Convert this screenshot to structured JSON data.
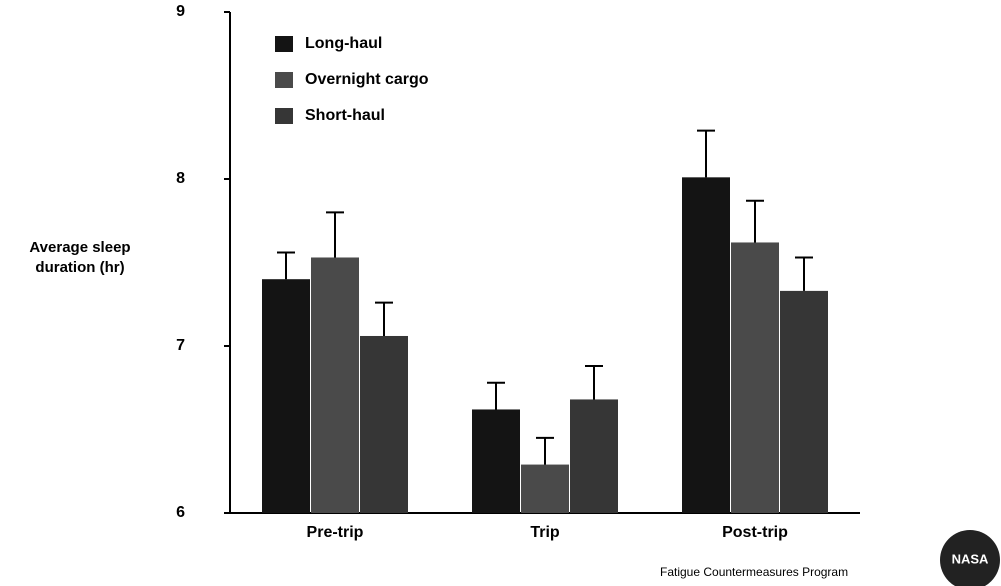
{
  "chart_data": {
    "type": "bar",
    "y_label": "Average sleep duration (hr)",
    "categories": [
      "Pre-trip",
      "Trip",
      "Post-trip"
    ],
    "series": [
      {
        "name": "Long-haul",
        "color": "#141414",
        "values": [
          7.4,
          6.62,
          8.01
        ],
        "errors": [
          0.16,
          0.16,
          0.28
        ]
      },
      {
        "name": "Overnight cargo",
        "color": "#4a4a4a",
        "values": [
          7.53,
          6.29,
          7.62
        ],
        "errors": [
          0.27,
          0.16,
          0.25
        ]
      },
      {
        "name": "Short-haul",
        "color": "#363636",
        "values": [
          7.06,
          6.68,
          7.33
        ],
        "errors": [
          0.2,
          0.2,
          0.2
        ]
      }
    ],
    "ylim": [
      6,
      9
    ],
    "yticks": [
      6,
      7,
      8,
      9
    ],
    "grid": false,
    "legend": "upper left"
  },
  "footer": "Fatigue Countermeasures Program",
  "logo": "NASA"
}
